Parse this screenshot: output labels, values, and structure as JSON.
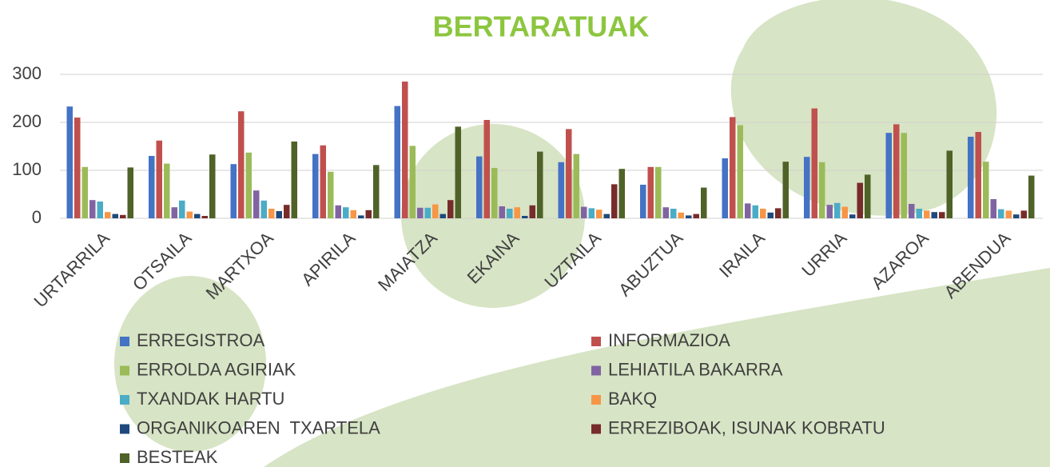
{
  "chart_data": {
    "type": "bar",
    "title": "BERTARATUAK",
    "categories": [
      "URTARRILA",
      "OTSAILA",
      "MARTXOA",
      "APIRILA",
      "MAIATZA",
      "EKAINA",
      "UZTAILA",
      "ABUZTUA",
      "IRAILA",
      "URRIA",
      "AZAROA",
      "ABENDUA"
    ],
    "series": [
      {
        "name": "ERREGISTROA",
        "color": "#4472c4",
        "values": [
          233,
          130,
          113,
          134,
          234,
          129,
          117,
          70,
          125,
          128,
          178,
          170
        ]
      },
      {
        "name": "INFORMAZIOA",
        "color": "#c0504d",
        "values": [
          210,
          162,
          223,
          152,
          285,
          205,
          186,
          107,
          211,
          229,
          196,
          180
        ]
      },
      {
        "name": "ERROLDA AGIRIAK",
        "color": "#9bbb59",
        "values": [
          107,
          114,
          137,
          97,
          151,
          105,
          134,
          107,
          194,
          117,
          178,
          118
        ]
      },
      {
        "name": "LEHIATILA BAKARRA",
        "color": "#8064a2",
        "values": [
          38,
          23,
          58,
          27,
          22,
          25,
          24,
          23,
          31,
          28,
          30,
          40
        ]
      },
      {
        "name": "TXANDAK HARTU",
        "color": "#4bacc6",
        "values": [
          35,
          37,
          37,
          23,
          22,
          20,
          21,
          20,
          27,
          32,
          20,
          19
        ]
      },
      {
        "name": "BAKQ",
        "color": "#f79646",
        "values": [
          13,
          14,
          20,
          17,
          29,
          23,
          18,
          12,
          20,
          24,
          16,
          16
        ]
      },
      {
        "name": "ORGANIKOAREN  TXARTELA",
        "color": "#1f497d",
        "values": [
          9,
          9,
          15,
          6,
          9,
          5,
          9,
          6,
          12,
          8,
          13,
          8
        ]
      },
      {
        "name": "ERREZIBOAK, ISUNAK KOBRATU",
        "color": "#772c2a",
        "values": [
          7,
          5,
          28,
          17,
          38,
          27,
          71,
          9,
          21,
          74,
          13,
          16
        ]
      },
      {
        "name": "BESTEAK",
        "color": "#4f6228",
        "values": [
          106,
          133,
          160,
          111,
          191,
          139,
          103,
          64,
          118,
          91,
          141,
          89
        ]
      }
    ],
    "ylim": [
      0,
      300
    ],
    "yticks": [
      0,
      100,
      200,
      300
    ],
    "grid": true
  }
}
